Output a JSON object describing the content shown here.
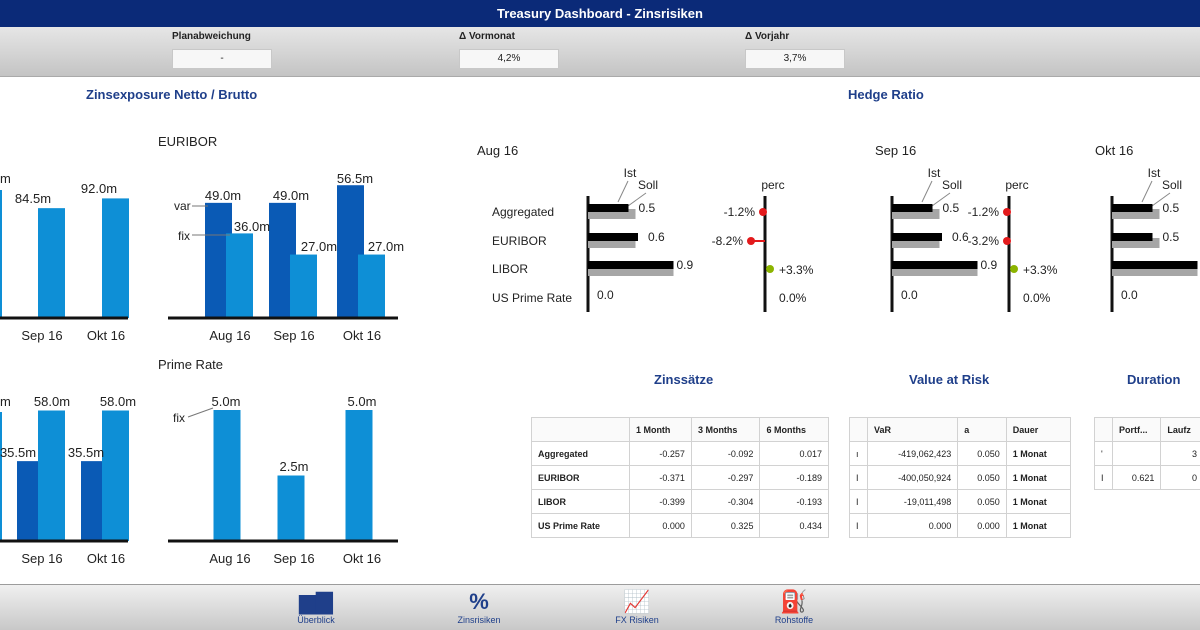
{
  "header": {
    "title": "Treasury Dashboard - Zinsrisiken"
  },
  "kpis": [
    {
      "label": "Planabweichung",
      "value": "-"
    },
    {
      "label": "Δ Vormonat",
      "value": "4,2%"
    },
    {
      "label": "Δ Vorjahr",
      "value": "3,7%"
    }
  ],
  "sections": {
    "exposure_title": "Zinsexposure Netto / Brutto",
    "hedge_title": "Hedge Ratio",
    "rates_title": "Zinssätze",
    "var_title": "Value at Risk",
    "duration_title": "Duration"
  },
  "colors": {
    "dark_bar": "#0a5ab5",
    "light_bar": "#0e8fd6",
    "hedge_ist": "#000000",
    "hedge_soll": "#a6a6a6",
    "neg_marker": "#e31a1c",
    "pos_marker": "#8cb400"
  },
  "chart_data": [
    {
      "type": "bar",
      "title": "",
      "categories": [
        "Sep 16",
        "Okt 16"
      ],
      "series": [
        {
          "values": [
            null,
            null
          ]
        },
        {
          "values": [
            84.5,
            92.0
          ]
        }
      ],
      "data_labels": [
        "m",
        "84.5m",
        "92.0m"
      ]
    },
    {
      "type": "bar",
      "title": "EURIBOR",
      "categories": [
        "Aug 16",
        "Sep 16",
        "Okt 16"
      ],
      "series": [
        {
          "name": "var",
          "values": [
            49.0,
            49.0,
            56.5
          ]
        },
        {
          "name": "fix",
          "values": [
            36.0,
            27.0,
            27.0
          ]
        }
      ],
      "data_labels": [
        "49.0m",
        "36.0m",
        "49.0m",
        "27.0m",
        "56.5m",
        "27.0m"
      ]
    },
    {
      "type": "bar",
      "title": "",
      "categories": [
        "Sep 16",
        "Okt 16"
      ],
      "series": [
        {
          "values": [
            35.5,
            35.5
          ]
        },
        {
          "values": [
            58.0,
            58.0
          ]
        }
      ],
      "data_labels": [
        "m",
        "58.0m",
        "35.5m",
        "58.0m",
        "35.5m"
      ]
    },
    {
      "type": "bar",
      "title": "Prime Rate",
      "categories": [
        "Aug 16",
        "Sep 16",
        "Okt 16"
      ],
      "series": [
        {
          "name": "fix",
          "values": [
            5.0,
            2.5,
            5.0
          ]
        }
      ],
      "data_labels": [
        "5.0m",
        "2.5m",
        "5.0m"
      ]
    },
    {
      "type": "bar",
      "title": "Aug 16",
      "categories": [
        "Aggregated",
        "EURIBOR",
        "LIBOR",
        "US Prime Rate"
      ],
      "series": [
        {
          "name": "Ist",
          "values": [
            0.5,
            0.6,
            0.9,
            0.0
          ]
        },
        {
          "name": "Soll",
          "values": [
            0.5,
            0.5,
            0.9,
            0.0
          ]
        }
      ],
      "perc_label": "perc",
      "perc": [
        "-1.2%",
        "-8.2%",
        "+3.3%",
        "0.0%"
      ]
    },
    {
      "type": "bar",
      "title": "Sep 16",
      "categories": [
        "Aggregated",
        "EURIBOR",
        "LIBOR",
        "US Prime Rate"
      ],
      "series": [
        {
          "name": "Ist",
          "values": [
            0.5,
            0.6,
            0.9,
            0.0
          ]
        },
        {
          "name": "Soll",
          "values": [
            0.5,
            0.5,
            0.9,
            0.0
          ]
        }
      ],
      "perc_label": "perc",
      "perc": [
        "-1.2%",
        "-3.2%",
        "+3.3%",
        "0.0%"
      ]
    },
    {
      "type": "bar",
      "title": "Okt 16",
      "categories": [
        "Aggregated",
        "EURIBOR",
        "LIBOR",
        "US Prime Rate"
      ],
      "series": [
        {
          "name": "Ist",
          "values": [
            0.5,
            0.5,
            0.9,
            0.0
          ]
        },
        {
          "name": "Soll",
          "values": [
            0.5,
            0.5,
            0.9,
            0.0
          ]
        }
      ]
    }
  ],
  "rates_table": {
    "headers": [
      "",
      "1 Month",
      "3 Months",
      "6 Months"
    ],
    "rows": [
      [
        "Aggregated",
        "-0.257",
        "-0.092",
        "0.017"
      ],
      [
        "EURIBOR",
        "-0.371",
        "-0.297",
        "-0.189"
      ],
      [
        "LIBOR",
        "-0.399",
        "-0.304",
        "-0.193"
      ],
      [
        "US Prime Rate",
        "0.000",
        "0.325",
        "0.434"
      ]
    ]
  },
  "var_table": {
    "headers": [
      "",
      "VaR",
      "a",
      "Dauer"
    ],
    "rows": [
      [
        "ı",
        "-419,062,423",
        "0.050",
        "1 Monat"
      ],
      [
        "I",
        "-400,050,924",
        "0.050",
        "1 Monat"
      ],
      [
        "I",
        "-19,011,498",
        "0.050",
        "1 Monat"
      ],
      [
        "I",
        "0.000",
        "0.000",
        "1 Monat"
      ]
    ]
  },
  "duration_table": {
    "headers": [
      "",
      "Portf...",
      "Laufz"
    ],
    "rows": [
      [
        "'",
        "",
        "3"
      ],
      [
        "I",
        "0.621",
        "0"
      ]
    ]
  },
  "footer": {
    "nav": [
      {
        "label": "Überblick",
        "icon": "overview-icon",
        "glyph": "▆▇"
      },
      {
        "label": "Zinsrisiken",
        "icon": "percent-icon",
        "glyph": "%"
      },
      {
        "label": "FX Risiken",
        "icon": "fx-chart-icon",
        "glyph": "📈"
      },
      {
        "label": "Rohstoffe",
        "icon": "oil-pump-icon",
        "glyph": "⛽"
      }
    ]
  }
}
